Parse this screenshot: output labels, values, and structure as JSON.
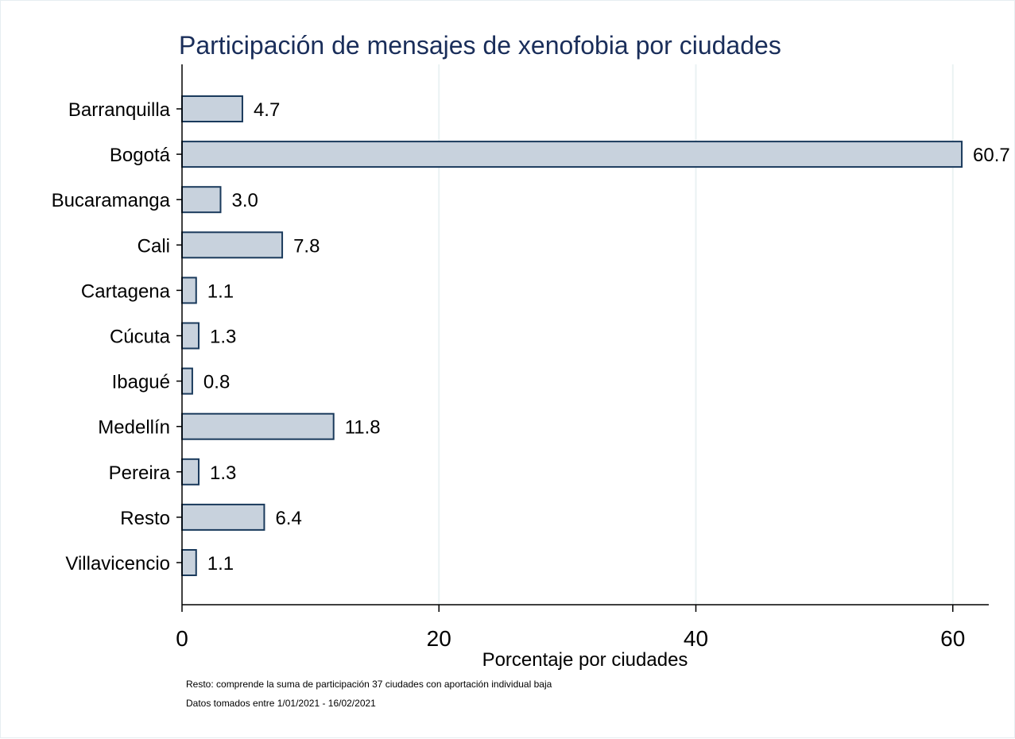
{
  "chart_data": {
    "type": "bar",
    "orientation": "horizontal",
    "title": "Participación de mensajes de xenofobia por ciudades",
    "xlabel": "Porcentaje por ciudades",
    "ylabel": "",
    "categories": [
      "Barranquilla",
      "Bogotá",
      "Bucaramanga",
      "Cali",
      "Cartagena",
      "Cúcuta",
      "Ibagué",
      "Medellín",
      "Pereira",
      "Resto",
      "Villavicencio"
    ],
    "values": [
      4.7,
      60.7,
      3.0,
      7.8,
      1.1,
      1.3,
      0.8,
      11.8,
      1.3,
      6.4,
      1.1
    ],
    "value_labels": [
      "4.7",
      "60.7",
      "3.0",
      "7.8",
      "1.1",
      "1.3",
      "0.8",
      "11.8",
      "1.3",
      "6.4",
      "1.1"
    ],
    "xlim": [
      0,
      62.8
    ],
    "xticks": [
      0,
      20,
      40,
      60
    ],
    "xtick_labels": [
      "0",
      "20",
      "40",
      "60"
    ],
    "grid": true,
    "colors": {
      "bar_fill": "#c8d2dd",
      "bar_stroke": "#1a3a5c",
      "grid": "#eaf2f3",
      "title": "#1a2e5a"
    }
  },
  "notes": [
    "Resto: comprende la suma de participación 37 ciudades con aportación individual baja",
    "Datos tomados entre 1/01/2021 - 16/02/2021"
  ]
}
